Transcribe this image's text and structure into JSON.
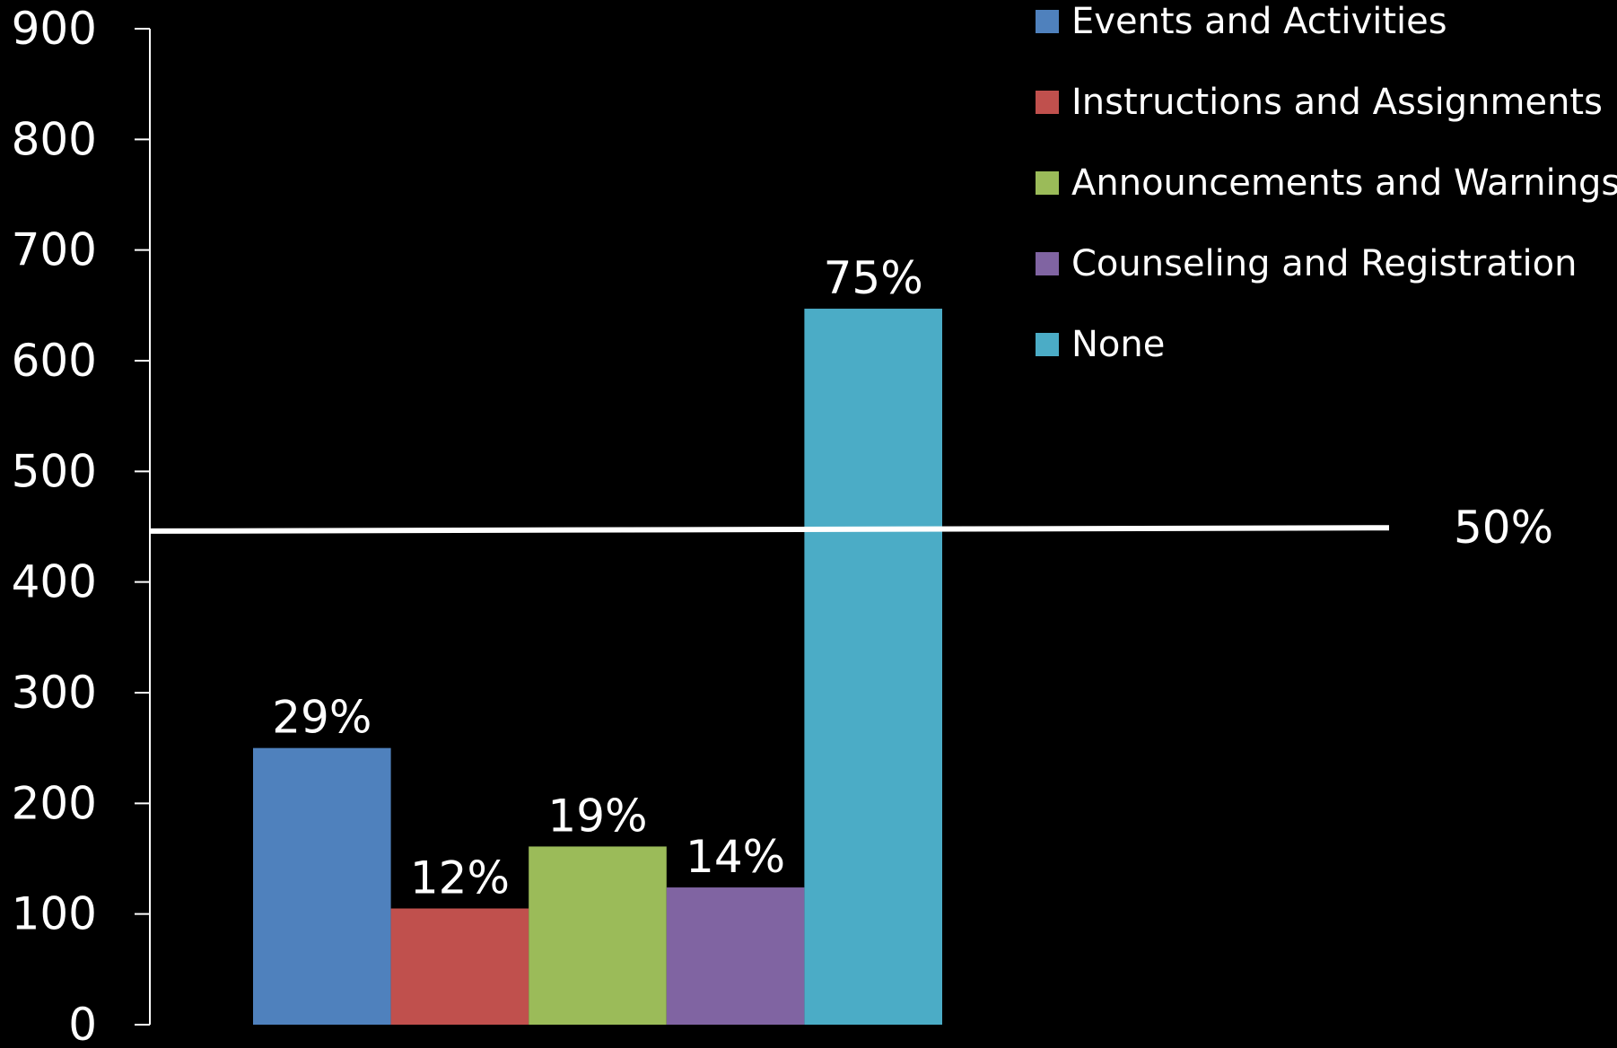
{
  "chart_data": {
    "type": "bar",
    "title": "",
    "xlabel": "",
    "ylabel": "",
    "ylim": [
      0,
      900
    ],
    "yticks": [
      0,
      100,
      200,
      300,
      400,
      500,
      600,
      700,
      800,
      900
    ],
    "grid": false,
    "legend_position": "top-right",
    "series": [
      {
        "name": "Events and Activities",
        "value": 250,
        "label": "29%",
        "color": "#4f81bd"
      },
      {
        "name": "Instructions and Assignments",
        "value": 105,
        "label": "12%",
        "color": "#c0504d"
      },
      {
        "name": "Announcements and Warnings",
        "value": 161,
        "label": "19%",
        "color": "#9bbb59"
      },
      {
        "name": "Counseling and Registration",
        "value": 124,
        "label": "14%",
        "color": "#8064a2"
      },
      {
        "name": "None",
        "value": 647,
        "label": "75%",
        "color": "#4bacc6"
      }
    ],
    "reference_line": {
      "value_start": 446,
      "value_end": 449,
      "label": "50%",
      "color": "#ffffff"
    },
    "axis_color": "#ffffff",
    "background": "#000000"
  }
}
